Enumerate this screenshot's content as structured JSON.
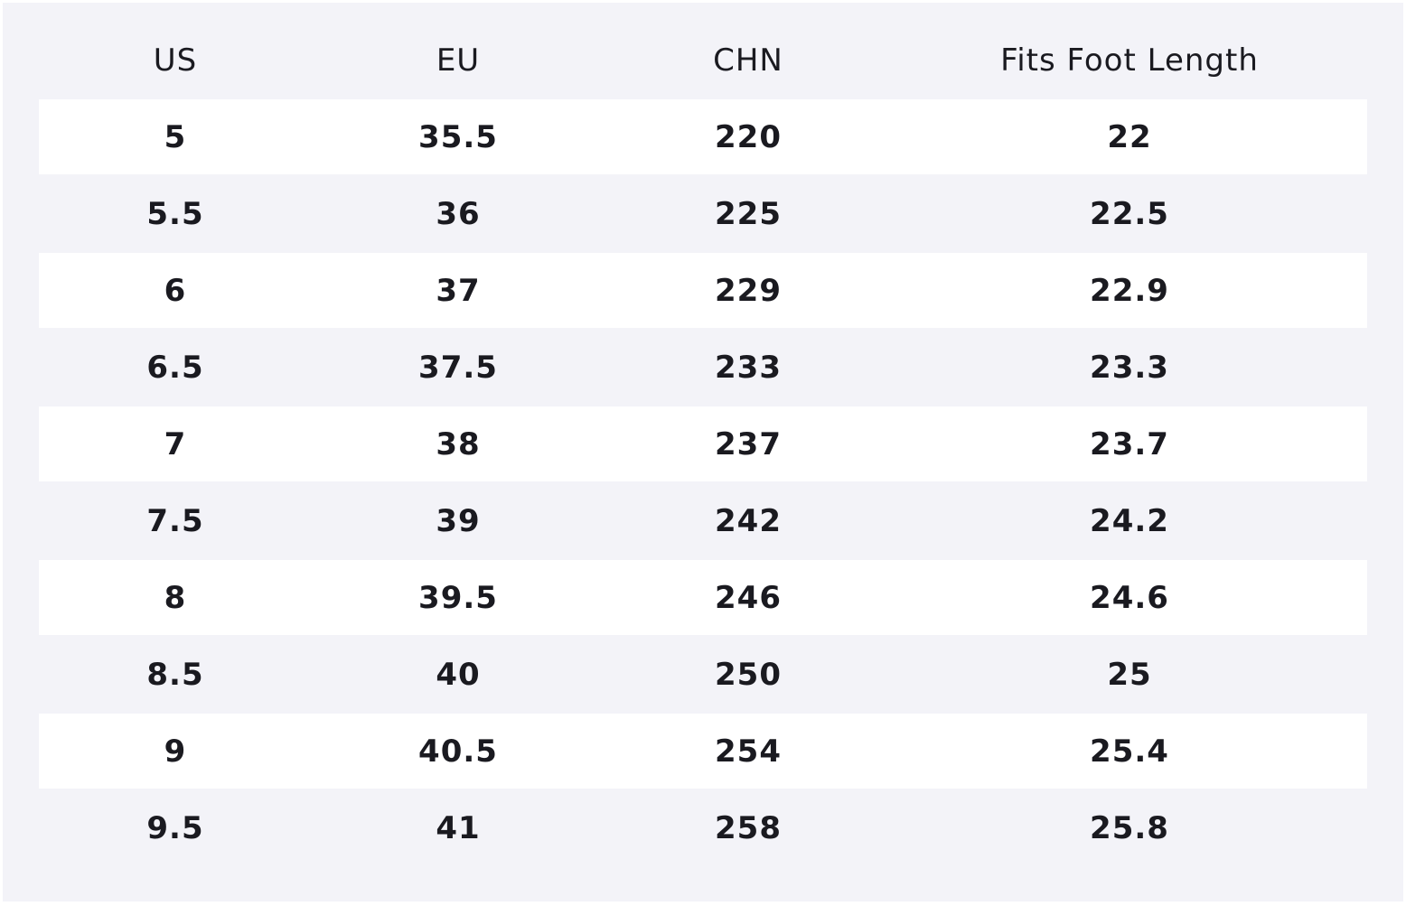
{
  "table": {
    "header": [
      "US",
      "EU",
      "CHN",
      "Fits Foot Length"
    ],
    "rows": [
      [
        5,
        35.5,
        220,
        22
      ],
      [
        5.5,
        36,
        225,
        22.5
      ],
      [
        6,
        37,
        229,
        22.9
      ],
      [
        6.5,
        37.5,
        233,
        23.3
      ],
      [
        7,
        38,
        237,
        23.7
      ],
      [
        7.5,
        39,
        242,
        24.2
      ],
      [
        8,
        39.5,
        246,
        24.6
      ],
      [
        8.5,
        40,
        250,
        25
      ],
      [
        9,
        40.5,
        254,
        25.4
      ],
      [
        9.5,
        41,
        258,
        25.8
      ]
    ]
  }
}
